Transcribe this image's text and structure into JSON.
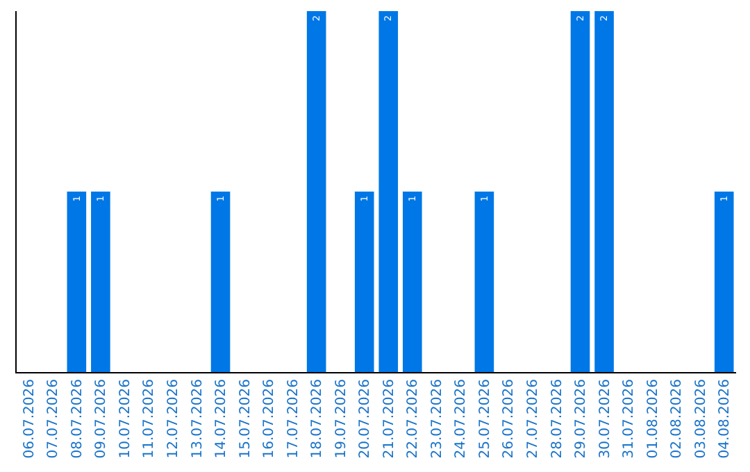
{
  "chart_data": {
    "type": "bar",
    "categories": [
      "06.07.2026",
      "07.07.2026",
      "08.07.2026",
      "09.07.2026",
      "10.07.2026",
      "11.07.2026",
      "12.07.2026",
      "13.07.2026",
      "14.07.2026",
      "15.07.2026",
      "16.07.2026",
      "17.07.2026",
      "18.07.2026",
      "19.07.2026",
      "20.07.2026",
      "21.07.2026",
      "22.07.2026",
      "23.07.2026",
      "24.07.2026",
      "25.07.2026",
      "26.07.2026",
      "27.07.2026",
      "28.07.2026",
      "29.07.2026",
      "30.07.2026",
      "31.07.2026",
      "01.08.2026",
      "02.08.2026",
      "03.08.2026",
      "04.08.2026"
    ],
    "values": [
      0,
      0,
      1,
      1,
      0,
      0,
      0,
      0,
      1,
      0,
      0,
      0,
      2,
      0,
      1,
      2,
      1,
      0,
      0,
      1,
      0,
      0,
      0,
      2,
      2,
      0,
      0,
      0,
      0,
      1
    ],
    "value_labels": [
      null,
      null,
      "1",
      "1",
      null,
      null,
      null,
      null,
      "1",
      null,
      null,
      null,
      "2",
      null,
      "1",
      "2",
      "1",
      null,
      null,
      "1",
      null,
      null,
      null,
      "2",
      "2",
      null,
      null,
      null,
      null,
      "1"
    ],
    "color": "#0077e6",
    "ylim": [
      0,
      2
    ],
    "tick_labels": "x"
  }
}
